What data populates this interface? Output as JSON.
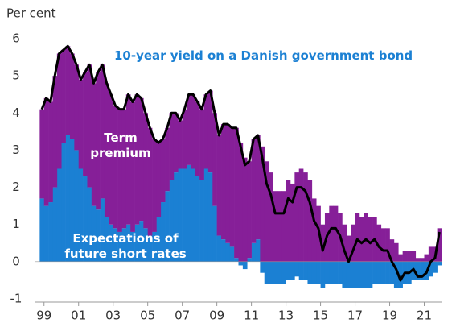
{
  "chart_data": {
    "type": "bar",
    "y_label": "Per cent",
    "x": [
      1998.75,
      1999,
      1999.25,
      1999.5,
      1999.75,
      2000,
      2000.25,
      2000.5,
      2000.75,
      2001,
      2001.25,
      2001.5,
      2001.75,
      2002,
      2002.25,
      2002.5,
      2002.75,
      2003,
      2003.25,
      2003.5,
      2003.75,
      2004,
      2004.25,
      2004.5,
      2004.75,
      2005,
      2005.25,
      2005.5,
      2005.75,
      2006,
      2006.25,
      2006.5,
      2006.75,
      2007,
      2007.25,
      2007.5,
      2007.75,
      2008,
      2008.25,
      2008.5,
      2008.75,
      2009,
      2009.25,
      2009.5,
      2009.75,
      2010,
      2010.25,
      2010.5,
      2010.75,
      2011,
      2011.25,
      2011.5,
      2011.75,
      2012,
      2012.25,
      2012.5,
      2012.75,
      2013,
      2013.25,
      2013.5,
      2013.75,
      2014,
      2014.25,
      2014.5,
      2014.75,
      2015,
      2015.25,
      2015.5,
      2015.75,
      2016,
      2016.25,
      2016.5,
      2016.75,
      2017,
      2017.25,
      2017.5,
      2017.75,
      2018,
      2018.25,
      2018.5,
      2018.75,
      2019,
      2019.25,
      2019.5,
      2019.75,
      2020,
      2020.25,
      2020.5,
      2020.75,
      2021,
      2021.25,
      2021.5,
      2021.75
    ],
    "series": [
      {
        "name": "Expectations of future short rates",
        "type": "bar",
        "color": "#1b80d3",
        "values": [
          1.7,
          1.5,
          1.6,
          2.0,
          2.5,
          3.2,
          3.4,
          3.3,
          3.0,
          2.5,
          2.3,
          2.0,
          1.5,
          1.4,
          1.7,
          1.2,
          1.0,
          0.9,
          0.8,
          0.9,
          1.0,
          0.8,
          1.0,
          1.1,
          0.9,
          0.7,
          0.8,
          1.2,
          1.6,
          1.9,
          2.2,
          2.4,
          2.5,
          2.5,
          2.6,
          2.5,
          2.3,
          2.2,
          2.5,
          2.4,
          1.5,
          0.7,
          0.6,
          0.5,
          0.4,
          0.1,
          -0.1,
          -0.2,
          0.1,
          0.5,
          0.6,
          -0.3,
          -0.6,
          -0.6,
          -0.6,
          -0.6,
          -0.6,
          -0.5,
          -0.5,
          -0.4,
          -0.5,
          -0.5,
          -0.6,
          -0.6,
          -0.6,
          -0.7,
          -0.6,
          -0.6,
          -0.6,
          -0.6,
          -0.7,
          -0.7,
          -0.7,
          -0.7,
          -0.7,
          -0.7,
          -0.7,
          -0.6,
          -0.6,
          -0.6,
          -0.6,
          -0.6,
          -0.7,
          -0.7,
          -0.6,
          -0.6,
          -0.5,
          -0.5,
          -0.5,
          -0.5,
          -0.4,
          -0.3,
          -0.1
        ]
      },
      {
        "name": "Term premium",
        "type": "bar",
        "color": "#861f98",
        "values": [
          2.4,
          2.9,
          2.7,
          3.0,
          3.1,
          2.5,
          2.4,
          2.3,
          2.3,
          2.4,
          2.8,
          3.3,
          3.3,
          3.7,
          3.6,
          3.6,
          3.5,
          3.3,
          3.3,
          3.2,
          3.5,
          3.5,
          3.5,
          3.3,
          3.1,
          2.9,
          2.5,
          2.0,
          1.7,
          1.7,
          1.8,
          1.6,
          1.3,
          1.6,
          1.9,
          2.0,
          2.0,
          1.9,
          2.0,
          2.2,
          2.5,
          2.7,
          3.1,
          3.2,
          3.2,
          3.5,
          3.2,
          2.8,
          2.6,
          2.8,
          2.8,
          3.1,
          2.7,
          2.4,
          1.9,
          1.9,
          1.9,
          2.2,
          2.1,
          2.4,
          2.5,
          2.4,
          2.2,
          1.7,
          1.5,
          1.0,
          1.3,
          1.5,
          1.5,
          1.3,
          1.0,
          0.7,
          1.0,
          1.3,
          1.2,
          1.3,
          1.2,
          1.2,
          1.0,
          0.9,
          0.9,
          0.6,
          0.5,
          0.2,
          0.3,
          0.3,
          0.3,
          0.1,
          0.1,
          0.2,
          0.4,
          0.4,
          0.9
        ]
      },
      {
        "name": "10-year yield on a Danish government bond",
        "type": "line",
        "color": "#000000",
        "values": [
          4.1,
          4.4,
          4.3,
          5.0,
          5.6,
          5.7,
          5.8,
          5.6,
          5.3,
          4.9,
          5.1,
          5.3,
          4.8,
          5.1,
          5.3,
          4.8,
          4.5,
          4.2,
          4.1,
          4.1,
          4.5,
          4.3,
          4.5,
          4.4,
          4.0,
          3.6,
          3.3,
          3.2,
          3.3,
          3.6,
          4.0,
          4.0,
          3.8,
          4.1,
          4.5,
          4.5,
          4.3,
          4.1,
          4.5,
          4.6,
          4.0,
          3.4,
          3.7,
          3.7,
          3.6,
          3.6,
          3.1,
          2.6,
          2.7,
          3.3,
          3.4,
          2.8,
          2.1,
          1.8,
          1.3,
          1.3,
          1.3,
          1.7,
          1.6,
          2.0,
          2.0,
          1.9,
          1.6,
          1.1,
          0.9,
          0.3,
          0.7,
          0.9,
          0.9,
          0.7,
          0.3,
          0.0,
          0.3,
          0.6,
          0.5,
          0.6,
          0.5,
          0.6,
          0.4,
          0.3,
          0.3,
          0.0,
          -0.2,
          -0.5,
          -0.3,
          -0.3,
          -0.2,
          -0.4,
          -0.4,
          -0.3,
          0.0,
          0.1,
          0.8
        ]
      }
    ],
    "xlim": [
      1998.5,
      2022
    ],
    "xticks": [
      {
        "value": 1999,
        "label": "99"
      },
      {
        "value": 2001,
        "label": "01"
      },
      {
        "value": 2003,
        "label": "03"
      },
      {
        "value": 2005,
        "label": "05"
      },
      {
        "value": 2007,
        "label": "07"
      },
      {
        "value": 2009,
        "label": "09"
      },
      {
        "value": 2011,
        "label": "11"
      },
      {
        "value": 2013,
        "label": "13"
      },
      {
        "value": 2015,
        "label": "15"
      },
      {
        "value": 2017,
        "label": "17"
      },
      {
        "value": 2019,
        "label": "19"
      },
      {
        "value": 2021,
        "label": "21"
      }
    ],
    "ylim": [
      -1,
      6
    ],
    "yticks": [
      -1,
      0,
      1,
      2,
      3,
      4,
      5,
      6
    ],
    "grid": false
  }
}
